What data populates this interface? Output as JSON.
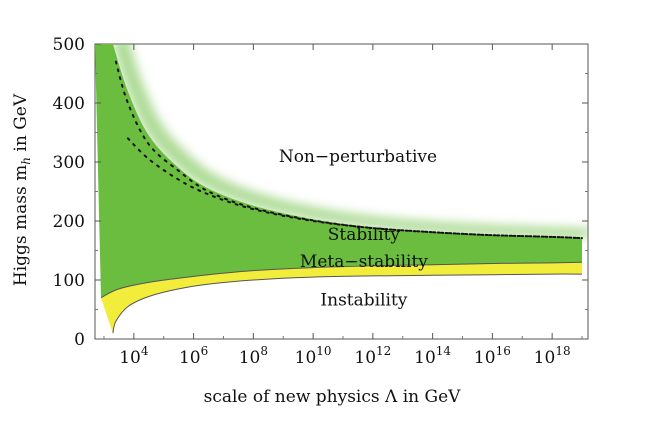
{
  "chart_data": {
    "type": "area",
    "xlabel": "scale of new physics Λ in GeV",
    "ylabel_main": "Higgs mass m",
    "ylabel_sub": "h",
    "ylabel_tail": " in GeV",
    "x_scale": "log10",
    "x_range_log10": [
      2.7,
      19.2
    ],
    "ylim": [
      0,
      500
    ],
    "y_ticks": [
      0,
      100,
      200,
      300,
      400,
      500
    ],
    "y_tick_labels": [
      "0",
      "100",
      "200",
      "300",
      "400",
      "500"
    ],
    "x_ticks_log10": [
      4,
      6,
      8,
      10,
      12,
      14,
      16,
      18
    ],
    "x_tick_labels": [
      "4",
      "6",
      "8",
      "10",
      "12",
      "14",
      "16",
      "18"
    ],
    "x_tick_base": "10",
    "regions": [
      {
        "name": "Non−perturbative",
        "label_x_log10": 11.5,
        "label_y": 300
      },
      {
        "name": "Stability",
        "label_x_log10": 11.7,
        "label_y": 168
      },
      {
        "name": "Meta−stability",
        "label_x_log10": 11.7,
        "label_y": 122
      },
      {
        "name": "Instability",
        "label_x_log10": 11.7,
        "label_y": 57
      }
    ],
    "stability_upper_bound": {
      "x_log10": [
        3.3,
        3.8,
        4.5,
        5.5,
        6.5,
        8,
        10,
        12,
        14,
        16,
        18,
        19
      ],
      "y": [
        500,
        420,
        345,
        290,
        255,
        226,
        203,
        189,
        181,
        176,
        172,
        170
      ]
    },
    "stability_lower_bound": {
      "x_log10": [
        2.9,
        3.5,
        4.5,
        5.5,
        6.5,
        8,
        10,
        12,
        14,
        16,
        18,
        19
      ],
      "y": [
        70,
        85,
        96,
        103,
        109,
        116,
        121,
        124,
        126,
        128,
        129,
        130
      ]
    },
    "metastability_lower_bound": {
      "x_log10": [
        3.3,
        3.4,
        3.8,
        4.5,
        5.5,
        6.5,
        8,
        10,
        12,
        14,
        16,
        18,
        19
      ],
      "y": [
        10,
        30,
        55,
        72,
        85,
        93,
        100,
        105,
        107,
        108,
        109,
        110,
        110
      ]
    },
    "dotted_upper": {
      "x_log10": [
        3.4,
        3.8,
        4.5,
        5.5,
        6.5,
        8,
        10,
        12,
        14,
        16,
        18,
        19
      ],
      "y": [
        470,
        400,
        330,
        285,
        250,
        222,
        201,
        188,
        181,
        176,
        173,
        171
      ]
    },
    "dotted_lower": {
      "x_log10": [
        3.8,
        4.5,
        5.5,
        6.5,
        8,
        10,
        12,
        14,
        16,
        18,
        19
      ],
      "y": [
        340,
        305,
        270,
        245,
        220,
        200,
        188,
        181,
        176,
        173,
        171
      ]
    },
    "colors": {
      "stability": "#6bbd3f",
      "metastability": "#f2ec3a",
      "boundary": "#555555"
    }
  }
}
